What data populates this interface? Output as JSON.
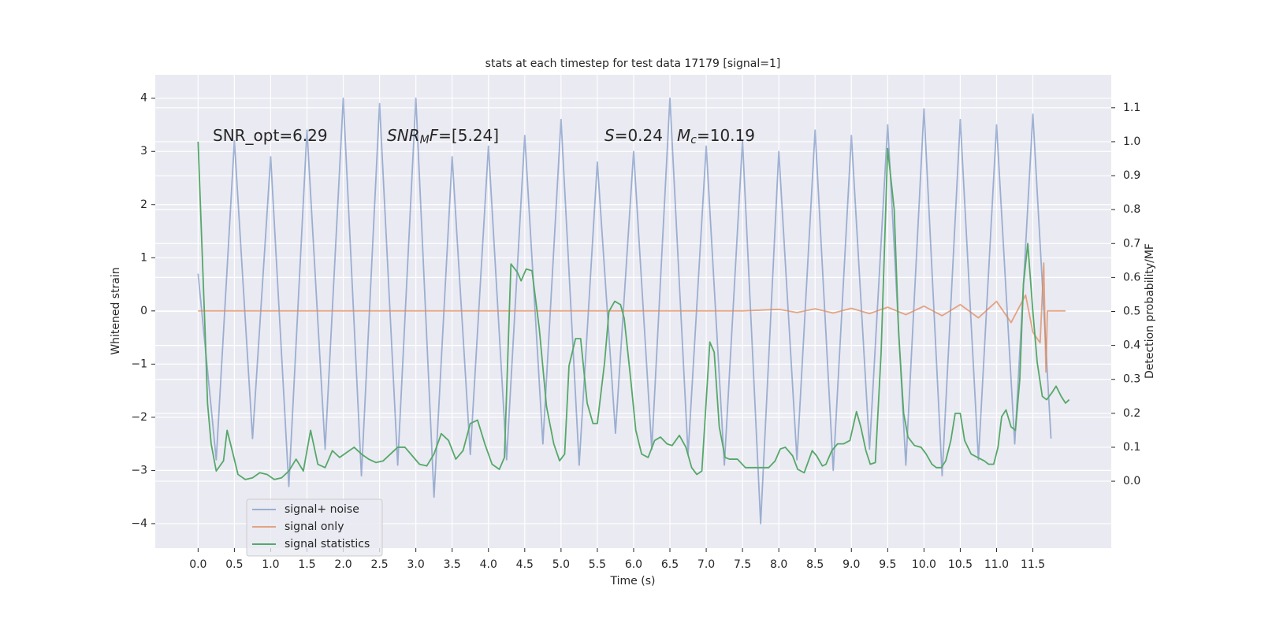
{
  "chart_data": {
    "type": "line",
    "title": "stats at each timestep for test data 17179 [signal=1]",
    "xlabel": "Time (s)",
    "ylabel": "Whitened strain",
    "y2label": "Detection probability/MF",
    "xlim": [
      -0.59,
      12.58
    ],
    "ylim": [
      -4.46,
      4.44
    ],
    "y2lim": [
      -0.197,
      1.197
    ],
    "xticks": [
      {
        "value": 0,
        "label": "0.0"
      },
      0.5,
      {
        "value": 1,
        "label": "1.0"
      },
      1.5,
      {
        "value": 2,
        "label": "2.0"
      },
      2.5,
      {
        "value": 3,
        "label": "3.0"
      },
      3.5,
      {
        "value": 4,
        "label": "4.0"
      },
      4.5,
      {
        "value": 5,
        "label": "5.0"
      },
      5.5,
      {
        "value": 6,
        "label": "6.0"
      },
      6.5,
      {
        "value": 7,
        "label": "7.0"
      },
      7.5,
      {
        "value": 8,
        "label": "8.0"
      },
      8.5,
      {
        "value": 9,
        "label": "9.0"
      },
      9.5,
      {
        "value": 10,
        "label": "10.0"
      },
      10.5,
      {
        "value": 11,
        "label": "11.0"
      },
      11.5
    ],
    "yticks": [
      {
        "value": -4,
        "label": "−4"
      },
      {
        "value": -3,
        "label": "−3"
      },
      {
        "value": -2,
        "label": "−2"
      },
      {
        "value": -1,
        "label": "−1"
      },
      0,
      1,
      2,
      3,
      4
    ],
    "y2ticks": [
      {
        "value": 0,
        "label": "0.0"
      },
      0.1,
      0.2,
      0.3,
      0.4,
      0.5,
      0.6,
      0.7,
      0.8,
      0.9,
      {
        "value": 1,
        "label": "1.0"
      },
      1.1
    ],
    "grid": true,
    "legend": "lower left",
    "annotations": [
      [
        {
          "text": "SNR_opt=6.29"
        }
      ],
      [
        {
          "text": "SNR",
          "italic": true
        },
        {
          "text": "M",
          "italic": true,
          "sub": true
        },
        {
          "text": "F",
          "italic": true
        },
        {
          "text": "=[5.24]"
        }
      ],
      [
        {
          "text": "S",
          "italic": true
        },
        {
          "text": "=0.24"
        }
      ],
      [
        {
          "text": "M",
          "italic": true
        },
        {
          "text": "c",
          "italic": true,
          "sub": true
        },
        {
          "text": "=10.19"
        }
      ]
    ],
    "series": [
      {
        "name": "signal+ noise",
        "color": "#4c72b0",
        "opacity": 0.5,
        "x": [
          0,
          0.25,
          0.5,
          0.75,
          1,
          1.25,
          1.5,
          1.75,
          2,
          2.25,
          2.5,
          2.75,
          3,
          3.25,
          3.5,
          3.75,
          4,
          4.25,
          4.5,
          4.75,
          5,
          5.25,
          5.5,
          5.75,
          6,
          6.25,
          6.5,
          6.75,
          7,
          7.25,
          7.5,
          7.75,
          8,
          8.25,
          8.5,
          8.75,
          9,
          9.25,
          9.5,
          9.75,
          10,
          10.25,
          10.5,
          10.75,
          11,
          11.25,
          11.5,
          11.75
        ],
        "values": [
          0.7,
          -2.8,
          3.2,
          -2.4,
          2.9,
          -3.3,
          3.4,
          -2.6,
          4.0,
          -3.1,
          3.9,
          -2.9,
          4.0,
          -3.5,
          2.9,
          -2.7,
          3.1,
          -2.8,
          3.3,
          -2.5,
          3.6,
          -2.9,
          2.8,
          -2.3,
          3.0,
          -2.6,
          4.0,
          -2.7,
          3.1,
          -2.9,
          3.2,
          -4.0,
          3.0,
          -2.8,
          3.4,
          -3.0,
          3.3,
          -2.6,
          3.5,
          -2.9,
          3.8,
          -3.1,
          3.6,
          -2.8,
          3.5,
          -2.5,
          3.7,
          -2.4
        ]
      },
      {
        "name": "signal only",
        "color": "#dd8452",
        "opacity": 0.7,
        "x": [
          0,
          7.5,
          8.0,
          8.25,
          8.5,
          8.75,
          9.0,
          9.25,
          9.5,
          9.75,
          10.0,
          10.25,
          10.5,
          10.75,
          11.0,
          11.2,
          11.4,
          11.5,
          11.6,
          11.65,
          11.68,
          11.7,
          11.95
        ],
        "values": [
          0,
          0,
          0.03,
          -0.03,
          0.04,
          -0.04,
          0.05,
          -0.05,
          0.07,
          -0.07,
          0.09,
          -0.09,
          0.12,
          -0.13,
          0.18,
          -0.22,
          0.3,
          -0.4,
          -0.6,
          0.9,
          -1.15,
          0,
          0
        ]
      },
      {
        "name": "signal statistics",
        "color": "#55a868",
        "opacity": 1,
        "axis": "y2",
        "x": [
          0,
          0.1,
          0.13,
          0.18,
          0.25,
          0.35,
          0.4,
          0.47,
          0.55,
          0.65,
          0.75,
          0.85,
          0.95,
          1.05,
          1.15,
          1.25,
          1.35,
          1.45,
          1.55,
          1.65,
          1.75,
          1.85,
          1.95,
          2.05,
          2.15,
          2.25,
          2.35,
          2.45,
          2.55,
          2.65,
          2.75,
          2.85,
          2.95,
          3.05,
          3.15,
          3.25,
          3.35,
          3.45,
          3.55,
          3.65,
          3.75,
          3.85,
          3.95,
          4.05,
          4.15,
          4.22,
          4.31,
          4.4,
          4.45,
          4.52,
          4.6,
          4.7,
          4.8,
          4.9,
          4.98,
          5.05,
          5.11,
          5.2,
          5.27,
          5.36,
          5.44,
          5.5,
          5.6,
          5.66,
          5.74,
          5.82,
          5.87,
          5.96,
          6.03,
          6.11,
          6.2,
          6.29,
          6.37,
          6.46,
          6.53,
          6.63,
          6.72,
          6.8,
          6.87,
          6.94,
          7.05,
          7.11,
          7.18,
          7.26,
          7.32,
          7.43,
          7.54,
          7.7,
          7.86,
          7.95,
          8.02,
          8.09,
          8.19,
          8.26,
          8.35,
          8.46,
          8.52,
          8.6,
          8.65,
          8.73,
          8.81,
          8.89,
          8.98,
          9.07,
          9.13,
          9.2,
          9.26,
          9.33,
          9.41,
          9.5,
          9.59,
          9.65,
          9.72,
          9.78,
          9.87,
          9.96,
          10.03,
          10.11,
          10.17,
          10.24,
          10.3,
          10.37,
          10.43,
          10.5,
          10.56,
          10.65,
          10.74,
          10.83,
          10.89,
          10.96,
          11.02,
          11.07,
          11.13,
          11.2,
          11.26,
          11.32,
          11.37,
          11.43,
          11.5,
          11.56,
          11.63,
          11.69,
          11.76,
          11.82,
          11.89,
          11.95,
          12.0
        ],
        "values": [
          1.0,
          0.42,
          0.23,
          0.11,
          0.03,
          0.06,
          0.15,
          0.09,
          0.02,
          0.005,
          0.01,
          0.025,
          0.02,
          0.005,
          0.01,
          0.03,
          0.065,
          0.03,
          0.15,
          0.05,
          0.04,
          0.09,
          0.07,
          0.085,
          0.1,
          0.08,
          0.065,
          0.055,
          0.06,
          0.08,
          0.1,
          0.1,
          0.075,
          0.05,
          0.045,
          0.08,
          0.14,
          0.12,
          0.065,
          0.09,
          0.17,
          0.18,
          0.11,
          0.05,
          0.035,
          0.07,
          0.64,
          0.615,
          0.59,
          0.625,
          0.62,
          0.45,
          0.22,
          0.11,
          0.06,
          0.08,
          0.34,
          0.42,
          0.42,
          0.23,
          0.17,
          0.17,
          0.35,
          0.5,
          0.53,
          0.52,
          0.48,
          0.3,
          0.15,
          0.08,
          0.07,
          0.12,
          0.13,
          0.11,
          0.105,
          0.135,
          0.1,
          0.04,
          0.02,
          0.03,
          0.41,
          0.38,
          0.16,
          0.07,
          0.065,
          0.065,
          0.04,
          0.04,
          0.04,
          0.06,
          0.095,
          0.1,
          0.075,
          0.035,
          0.025,
          0.09,
          0.075,
          0.045,
          0.05,
          0.09,
          0.11,
          0.11,
          0.12,
          0.205,
          0.16,
          0.09,
          0.05,
          0.055,
          0.38,
          0.98,
          0.8,
          0.44,
          0.2,
          0.13,
          0.105,
          0.1,
          0.08,
          0.05,
          0.04,
          0.04,
          0.06,
          0.12,
          0.2,
          0.2,
          0.12,
          0.08,
          0.07,
          0.06,
          0.05,
          0.05,
          0.1,
          0.19,
          0.21,
          0.16,
          0.15,
          0.3,
          0.58,
          0.7,
          0.5,
          0.35,
          0.25,
          0.24,
          0.26,
          0.28,
          0.25,
          0.23,
          0.24
        ]
      }
    ]
  }
}
